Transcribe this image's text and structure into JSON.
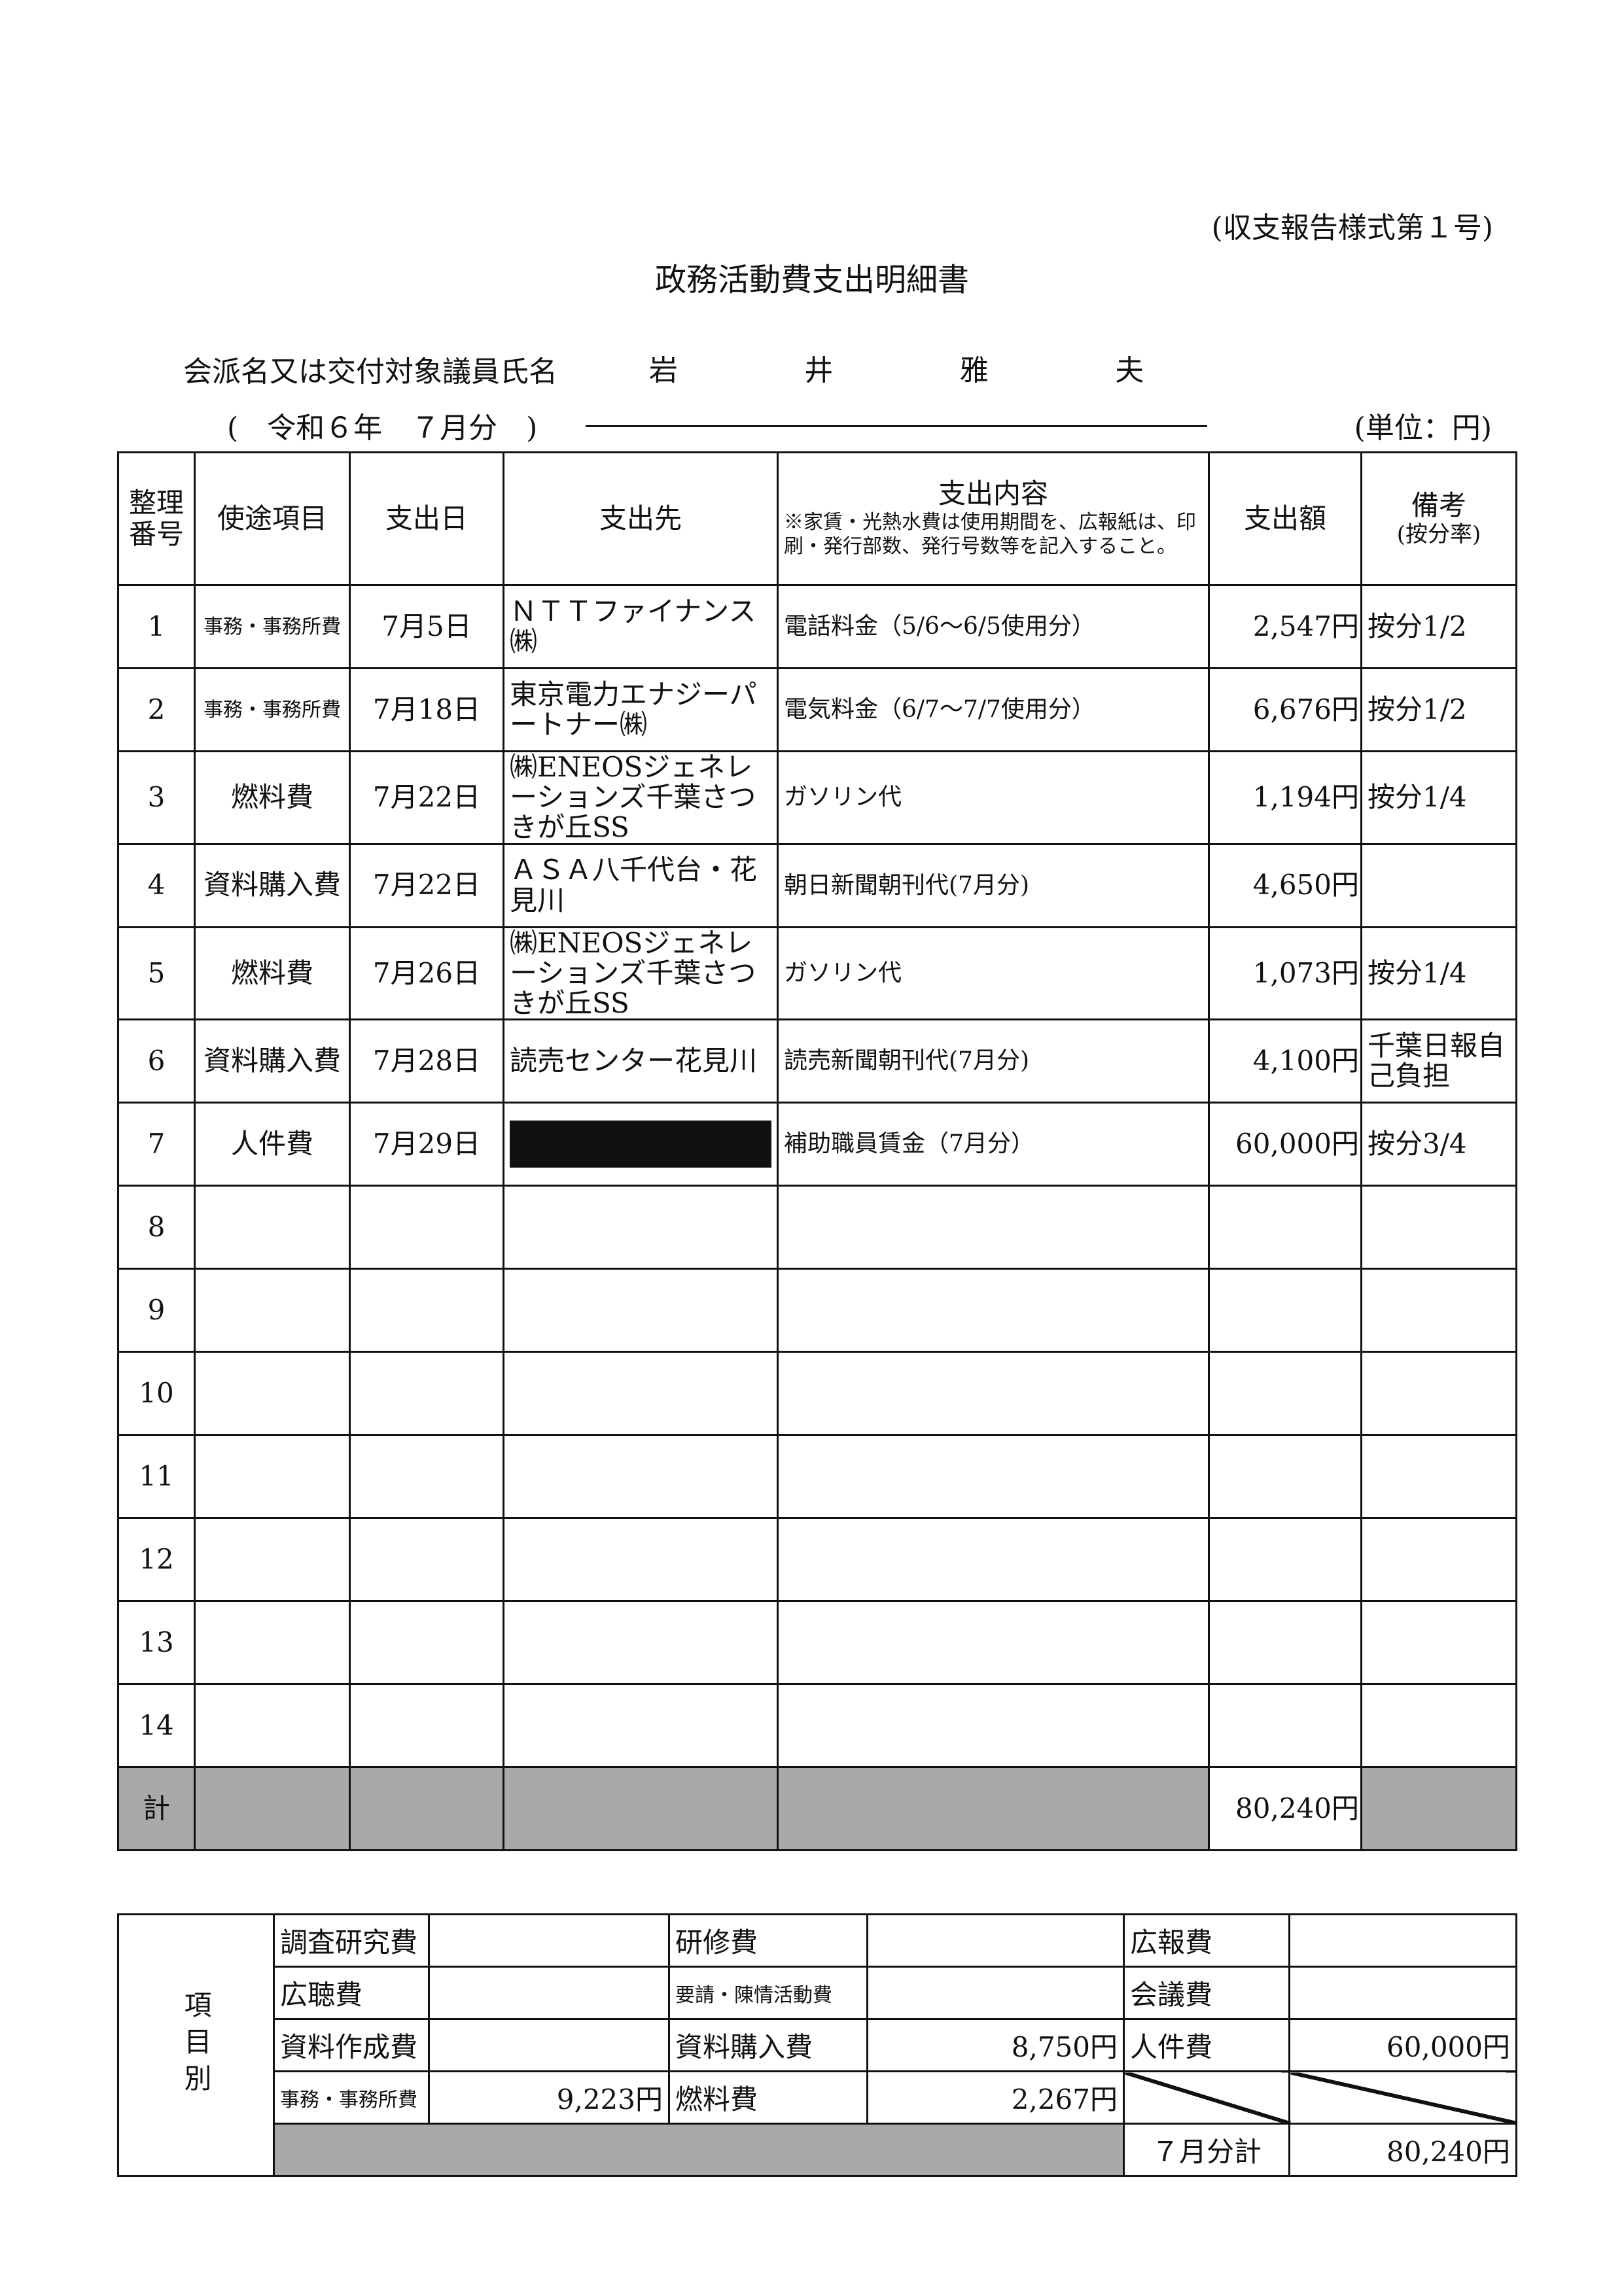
{
  "header": {
    "form_number": "(収支報告様式第１号)",
    "title": "政務活動費支出明細書",
    "name_label": "会派名又は交付対象議員氏名",
    "name_chars": [
      "岩",
      "井",
      "雅",
      "夫"
    ],
    "period": "(　令和６年　７月分　)",
    "unit": "(単位：円)"
  },
  "table": {
    "headers": {
      "no": "整理番号",
      "purpose": "使途項目",
      "date": "支出日",
      "payee": "支出先",
      "content": "支出内容",
      "content_note": "※家賃・光熱水費は使用期間を、広報紙は、印刷・発行部数、発行号数等を記入すること。",
      "amount": "支出額",
      "remarks": "備考",
      "remarks_sub": "(按分率)"
    },
    "rows": [
      {
        "no": "1",
        "purpose": "事務・事務所費",
        "date": "7月5日",
        "payee": "ＮＴＴファイナンス㈱",
        "content": "電話料金（5/6～6/5使用分）",
        "amount": "2,547円",
        "remarks": "按分1/2"
      },
      {
        "no": "2",
        "purpose": "事務・事務所費",
        "date": "7月18日",
        "payee": "東京電力エナジーパートナー㈱",
        "content": "電気料金（6/7～7/7使用分）",
        "amount": "6,676円",
        "remarks": "按分1/2"
      },
      {
        "no": "3",
        "purpose": "燃料費",
        "date": "7月22日",
        "payee": "㈱ENEOSジェネレーションズ千葉さつきが丘SS",
        "content": "ガソリン代",
        "amount": "1,194円",
        "remarks": "按分1/4"
      },
      {
        "no": "4",
        "purpose": "資料購入費",
        "date": "7月22日",
        "payee": "ＡＳＡ八千代台・花見川",
        "content": "朝日新聞朝刊代(7月分)",
        "amount": "4,650円",
        "remarks": ""
      },
      {
        "no": "5",
        "purpose": "燃料費",
        "date": "7月26日",
        "payee": "㈱ENEOSジェネレーションズ千葉さつきが丘SS",
        "content": "ガソリン代",
        "amount": "1,073円",
        "remarks": "按分1/4"
      },
      {
        "no": "6",
        "purpose": "資料購入費",
        "date": "7月28日",
        "payee": "読売センター花見川",
        "content": "読売新聞朝刊代(7月分)",
        "amount": "4,100円",
        "remarks": "千葉日報自己負担"
      },
      {
        "no": "7",
        "purpose": "人件費",
        "date": "7月29日",
        "payee": "",
        "content": "補助職員賃金（7月分）",
        "amount": "60,000円",
        "remarks": "按分3/4"
      },
      {
        "no": "8"
      },
      {
        "no": "9"
      },
      {
        "no": "10"
      },
      {
        "no": "11"
      },
      {
        "no": "12"
      },
      {
        "no": "13"
      },
      {
        "no": "14"
      }
    ],
    "total_label": "計",
    "total": "80,240円"
  },
  "summary": {
    "section_label": "項目別",
    "items": [
      [
        "調査研究費",
        "",
        "研修費",
        "",
        "広報費",
        ""
      ],
      [
        "広聴費",
        "",
        "要請・陳情活動費",
        "",
        "会議費",
        ""
      ],
      [
        "資料作成費",
        "",
        "資料購入費",
        "8,750円",
        "人件費",
        "60,000円"
      ],
      [
        "事務・事務所費",
        "9,223円",
        "燃料費",
        "2,267円"
      ]
    ],
    "month_total_label": "７月分計",
    "month_total": "80,240円"
  }
}
